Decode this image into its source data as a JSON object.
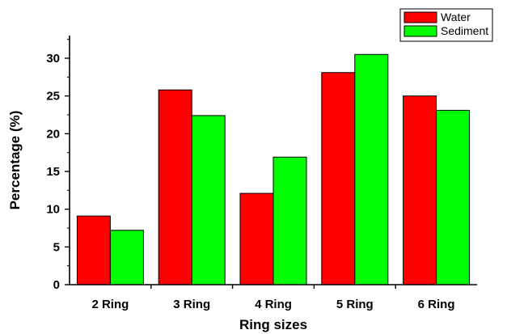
{
  "chart_data": {
    "type": "bar",
    "categories": [
      "2 Ring",
      "3 Ring",
      "4 Ring",
      "5 Ring",
      "6 Ring"
    ],
    "series": [
      {
        "name": "Water",
        "color": "#ff0000",
        "values": [
          9.1,
          25.8,
          12.1,
          28.1,
          25.0
        ]
      },
      {
        "name": "Sediment",
        "color": "#00ff00",
        "values": [
          7.2,
          22.4,
          16.9,
          30.5,
          23.1
        ]
      }
    ],
    "title": "",
    "xlabel": "Ring sizes",
    "ylabel": "Percentage (%)",
    "ylim": [
      0,
      33
    ],
    "yticks": [
      "0",
      "5",
      "10",
      "15",
      "20",
      "25",
      "30"
    ],
    "legend_position": "top-right",
    "grid": false
  }
}
